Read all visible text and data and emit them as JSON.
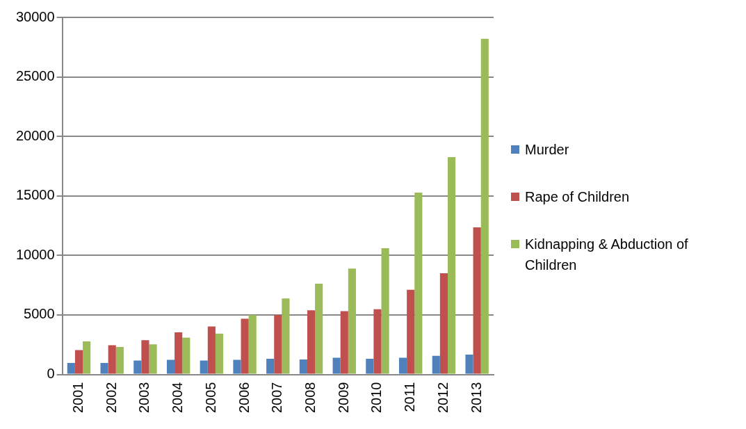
{
  "chart_data": {
    "type": "bar",
    "categories": [
      "2001",
      "2002",
      "2003",
      "2004",
      "2005",
      "2006",
      "2007",
      "2008",
      "2009",
      "2010",
      "2011",
      "2012",
      "2013"
    ],
    "series": [
      {
        "name": "Murder",
        "color": "#4f81bd",
        "values": [
          970,
          970,
          1170,
          1230,
          1170,
          1230,
          1310,
          1250,
          1400,
          1320,
          1400,
          1570,
          1660
        ]
      },
      {
        "name": "Rape of Children",
        "color": "#c0504d",
        "values": [
          2050,
          2460,
          2880,
          3540,
          4030,
          4680,
          5000,
          5390,
          5310,
          5480,
          7110,
          8500,
          12360
        ]
      },
      {
        "name": "Kidnapping & Abduction of Children",
        "color": "#9bbb59",
        "values": [
          2780,
          2310,
          2520,
          3090,
          3430,
          5000,
          6390,
          7620,
          8900,
          10600,
          15280,
          18260,
          28200
        ]
      }
    ],
    "ylim": [
      0,
      30000
    ],
    "yticks": [
      0,
      5000,
      10000,
      15000,
      20000,
      25000,
      30000
    ],
    "grid": "y",
    "legend": "right"
  }
}
